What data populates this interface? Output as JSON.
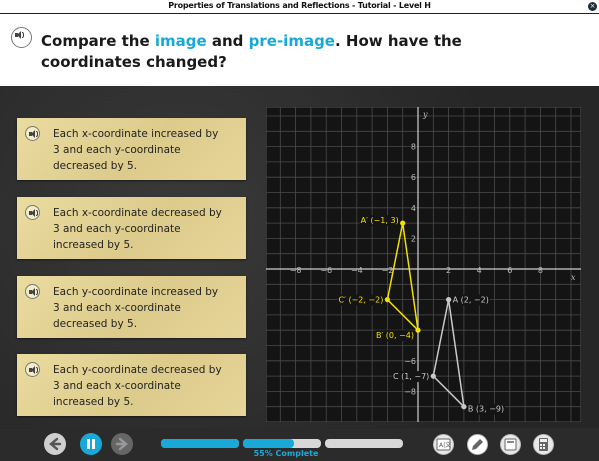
{
  "window": {
    "title": "Properties of Translations and Reflections - Tutorial - Level H"
  },
  "question": {
    "part1": "Compare the ",
    "image": "image",
    "part2": " and ",
    "preimage": "pre-image",
    "part3": ". How have the",
    "line2": "coordinates changed?"
  },
  "answers": [
    {
      "l1": "Each x-coordinate increased by",
      "l2": "3 and each y-coordinate",
      "l3": "decreased by 5."
    },
    {
      "l1": "Each x-coordinate decreased by",
      "l2": "3 and each y-coordinate",
      "l3": "increased by 5."
    },
    {
      "l1": "Each y-coordinate increased by",
      "l2": "3 and each x-coordinate",
      "l3": "decreased by 5."
    },
    {
      "l1": "Each y-coordinate decreased by",
      "l2": "3 and each x-coordinate",
      "l3": "increased by 5."
    }
  ],
  "graph": {
    "x_axis_label": "x",
    "y_axis_label": "y",
    "x_ticks": [
      "−8",
      "−6",
      "−4",
      "−2",
      "2",
      "4",
      "6",
      "8"
    ],
    "y_ticks": [
      "8",
      "6",
      "4",
      "2",
      "−6",
      "−8"
    ],
    "image_points": [
      {
        "label": "A′ (−1, 3)",
        "x": -1,
        "y": 3
      },
      {
        "label": "C′ (−2, −2)",
        "x": -2,
        "y": -2
      },
      {
        "label": "B′ (0, −4)",
        "x": 0,
        "y": -4
      }
    ],
    "preimage_points": [
      {
        "label": "A (2, −2)",
        "x": 2,
        "y": -2
      },
      {
        "label": "C (1, −7)",
        "x": 1,
        "y": -7
      },
      {
        "label": "B (3, −9)",
        "x": 3,
        "y": -9
      }
    ],
    "image_color": "#f2e000",
    "preimage_color": "#c9c9c9"
  },
  "progress": {
    "value": 0.55,
    "text": "55% Complete"
  },
  "colors": {
    "accent": "#1aa9d6",
    "card": "#e4d49a"
  },
  "icons": {
    "tools": [
      "translate-icon",
      "pencil-icon",
      "glossary-icon",
      "calculator-icon"
    ]
  }
}
